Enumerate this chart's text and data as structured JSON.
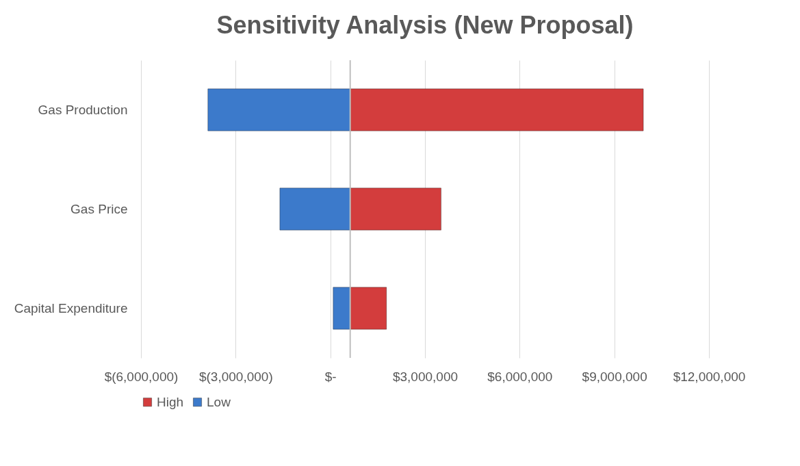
{
  "chart_data": {
    "type": "bar",
    "orientation": "horizontal",
    "title": "Sensitivity Analysis (New Proposal)",
    "categories": [
      "Gas Production",
      "Gas Price",
      "Capital Expenditure"
    ],
    "series": [
      {
        "name": "High",
        "color": "#d33d3d",
        "base": [
          630000,
          630000,
          630000
        ],
        "values": [
          9290000,
          2880000,
          1150000
        ]
      },
      {
        "name": "Low",
        "color": "#3c7acb",
        "base": [
          -3880000,
          -1600000,
          90000
        ],
        "values": [
          4510000,
          2230000,
          540000
        ]
      }
    ],
    "xlim": [
      -6000000,
      12000000
    ],
    "xticks": [
      {
        "value": -6000000,
        "label": "$(6,000,000)"
      },
      {
        "value": -3000000,
        "label": "$(3,000,000)"
      },
      {
        "value": 0,
        "label": "$-"
      },
      {
        "value": 3000000,
        "label": "$3,000,000"
      },
      {
        "value": 6000000,
        "label": "$6,000,000"
      },
      {
        "value": 9000000,
        "label": "$9,000,000"
      },
      {
        "value": 12000000,
        "label": "$12,000,000"
      }
    ],
    "ref_lines": [
      {
        "axis": "x",
        "value": 630000,
        "color": "#bfbfbf"
      }
    ],
    "grid": "x",
    "legend": "bottom"
  }
}
